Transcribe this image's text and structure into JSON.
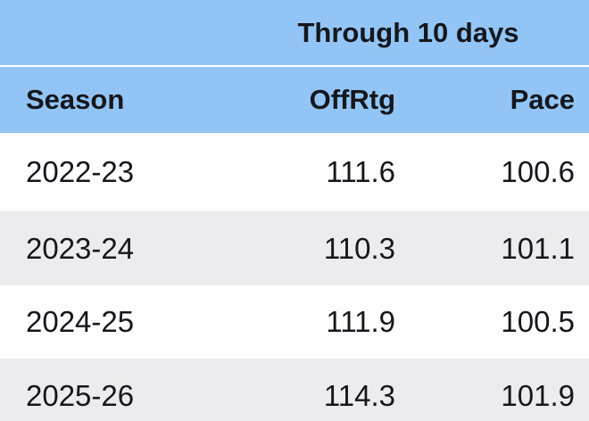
{
  "table": {
    "title": "Through 10 days",
    "columns": [
      "Season",
      "OffRtg",
      "Pace"
    ],
    "rows": [
      {
        "season": "2022-23",
        "offrtg": "111.6",
        "pace": "100.6"
      },
      {
        "season": "2023-24",
        "offrtg": "110.3",
        "pace": "101.1"
      },
      {
        "season": "2024-25",
        "offrtg": "111.9",
        "pace": "100.5"
      },
      {
        "season": "2025-26",
        "offrtg": "114.3",
        "pace": "101.9"
      }
    ]
  },
  "colors": {
    "header_blue": "#92c5f5",
    "row_light": "#fdfdfe",
    "row_shade": "#ececee",
    "text_dark": "#14171c",
    "header_divider": "#e6f1fc"
  },
  "chart_data": {
    "type": "table",
    "title": "Through 10 days",
    "columns": [
      "Season",
      "OffRtg",
      "Pace"
    ],
    "rows": [
      [
        "2022-23",
        111.6,
        100.6
      ],
      [
        "2023-24",
        110.3,
        101.1
      ],
      [
        "2024-25",
        111.9,
        100.5
      ],
      [
        "2025-26",
        114.3,
        101.9
      ]
    ]
  }
}
